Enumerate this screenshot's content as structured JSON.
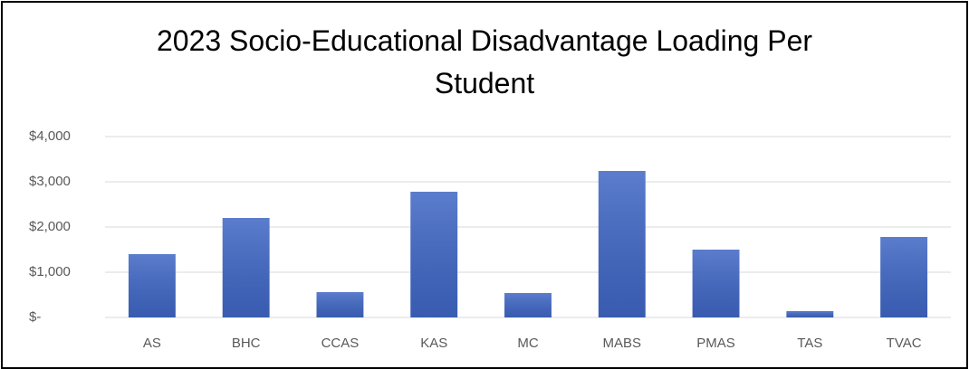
{
  "chart_data": {
    "type": "bar",
    "title": "2023 Socio-Educational Disadvantage Loading Per Student",
    "categories": [
      "AS",
      "BHC",
      "CCAS",
      "KAS",
      "MC",
      "MABS",
      "PMAS",
      "TAS",
      "TVAC"
    ],
    "values": [
      1400,
      2200,
      560,
      2780,
      540,
      3240,
      1500,
      140,
      1780
    ],
    "color": "#3f66c4",
    "ylim": [
      0,
      4000
    ],
    "yticks": [
      {
        "value": 0,
        "label": "$-"
      },
      {
        "value": 1000,
        "label": "$1,000"
      },
      {
        "value": 2000,
        "label": "$2,000"
      },
      {
        "value": 3000,
        "label": "$3,000"
      },
      {
        "value": 4000,
        "label": "$4,000"
      }
    ],
    "grid": true
  }
}
